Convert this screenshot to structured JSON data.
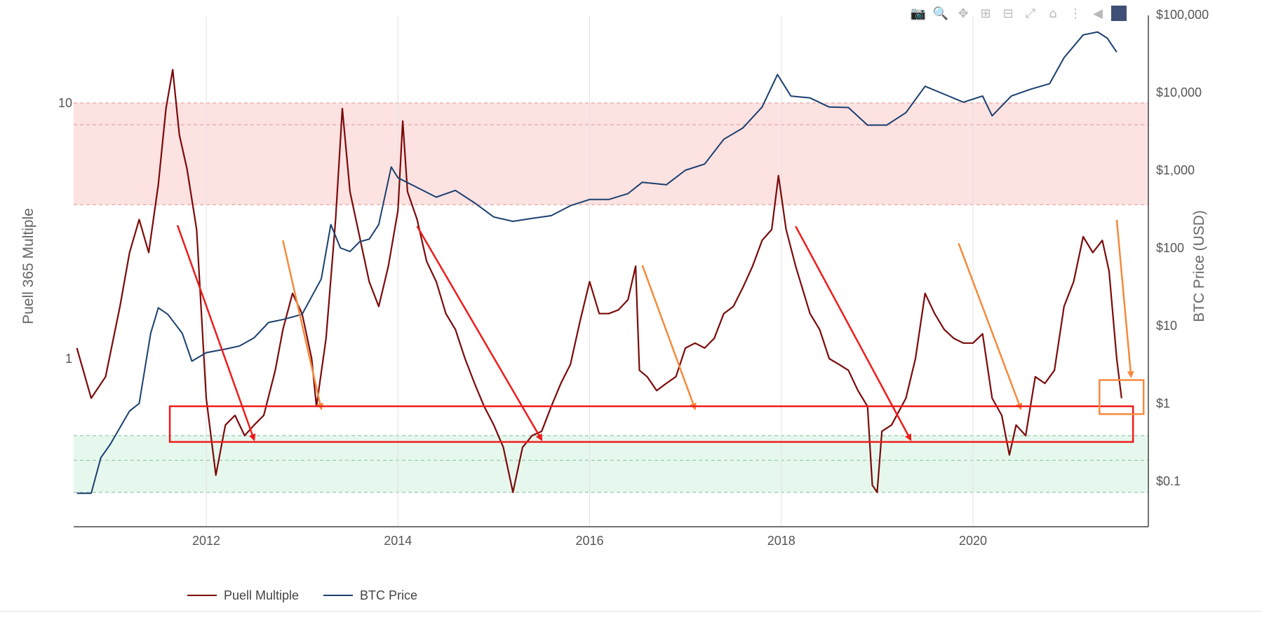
{
  "chart_data": {
    "type": "line",
    "x_tick_labels": [
      "2012",
      "2014",
      "2016",
      "2018",
      "2020"
    ],
    "y_left": {
      "label": "Puell 365 Multiple",
      "scale": "log",
      "tick_labels": [
        "10",
        "1"
      ]
    },
    "y_right": {
      "label": "BTC Price (USD)",
      "scale": "log",
      "tick_labels": [
        "$100,000",
        "$10,000",
        "$1,000",
        "$100",
        "$10",
        "$1",
        "$0.1"
      ]
    },
    "bands": [
      {
        "name": "high",
        "color": "#fde2e2",
        "puell_range": [
          4,
          10
        ]
      },
      {
        "name": "low",
        "color": "#e6f8ee",
        "puell_range": [
          0.3,
          0.5
        ]
      }
    ],
    "series": [
      {
        "name": "Puell Multiple",
        "color": "#7b0a0a",
        "points": [
          [
            2010.65,
            1.1
          ],
          [
            2010.8,
            0.7
          ],
          [
            2010.95,
            0.85
          ],
          [
            2011.1,
            1.6
          ],
          [
            2011.2,
            2.6
          ],
          [
            2011.3,
            3.5
          ],
          [
            2011.4,
            2.6
          ],
          [
            2011.5,
            4.8
          ],
          [
            2011.58,
            9.5
          ],
          [
            2011.65,
            13.5
          ],
          [
            2011.72,
            7.5
          ],
          [
            2011.8,
            5.5
          ],
          [
            2011.9,
            3.2
          ],
          [
            2012.0,
            0.7
          ],
          [
            2012.1,
            0.35
          ],
          [
            2012.2,
            0.55
          ],
          [
            2012.3,
            0.6
          ],
          [
            2012.4,
            0.5
          ],
          [
            2012.5,
            0.55
          ],
          [
            2012.6,
            0.6
          ],
          [
            2012.72,
            0.9
          ],
          [
            2012.8,
            1.3
          ],
          [
            2012.9,
            1.8
          ],
          [
            2013.0,
            1.5
          ],
          [
            2013.1,
            1.0
          ],
          [
            2013.15,
            0.65
          ],
          [
            2013.25,
            1.2
          ],
          [
            2013.35,
            3.5
          ],
          [
            2013.42,
            9.5
          ],
          [
            2013.5,
            4.5
          ],
          [
            2013.6,
            3.0
          ],
          [
            2013.7,
            2.0
          ],
          [
            2013.8,
            1.6
          ],
          [
            2013.9,
            2.3
          ],
          [
            2014.0,
            3.8
          ],
          [
            2014.05,
            8.5
          ],
          [
            2014.1,
            4.5
          ],
          [
            2014.2,
            3.5
          ],
          [
            2014.3,
            2.4
          ],
          [
            2014.4,
            2.0
          ],
          [
            2014.5,
            1.5
          ],
          [
            2014.6,
            1.3
          ],
          [
            2014.7,
            1.0
          ],
          [
            2014.8,
            0.8
          ],
          [
            2014.9,
            0.65
          ],
          [
            2015.0,
            0.55
          ],
          [
            2015.1,
            0.45
          ],
          [
            2015.2,
            0.3
          ],
          [
            2015.3,
            0.45
          ],
          [
            2015.4,
            0.5
          ],
          [
            2015.5,
            0.52
          ],
          [
            2015.6,
            0.65
          ],
          [
            2015.7,
            0.8
          ],
          [
            2015.8,
            0.95
          ],
          [
            2015.9,
            1.4
          ],
          [
            2016.0,
            2.0
          ],
          [
            2016.1,
            1.5
          ],
          [
            2016.2,
            1.5
          ],
          [
            2016.3,
            1.55
          ],
          [
            2016.4,
            1.7
          ],
          [
            2016.48,
            2.3
          ],
          [
            2016.52,
            0.9
          ],
          [
            2016.6,
            0.85
          ],
          [
            2016.7,
            0.75
          ],
          [
            2016.8,
            0.8
          ],
          [
            2016.9,
            0.85
          ],
          [
            2017.0,
            1.1
          ],
          [
            2017.1,
            1.15
          ],
          [
            2017.2,
            1.1
          ],
          [
            2017.3,
            1.2
          ],
          [
            2017.4,
            1.5
          ],
          [
            2017.5,
            1.6
          ],
          [
            2017.6,
            1.9
          ],
          [
            2017.7,
            2.3
          ],
          [
            2017.8,
            2.9
          ],
          [
            2017.9,
            3.2
          ],
          [
            2017.97,
            5.2
          ],
          [
            2018.05,
            3.2
          ],
          [
            2018.15,
            2.3
          ],
          [
            2018.3,
            1.5
          ],
          [
            2018.4,
            1.3
          ],
          [
            2018.5,
            1.0
          ],
          [
            2018.6,
            0.95
          ],
          [
            2018.7,
            0.9
          ],
          [
            2018.8,
            0.75
          ],
          [
            2018.9,
            0.65
          ],
          [
            2018.95,
            0.32
          ],
          [
            2019.0,
            0.3
          ],
          [
            2019.05,
            0.52
          ],
          [
            2019.15,
            0.55
          ],
          [
            2019.3,
            0.7
          ],
          [
            2019.4,
            1.0
          ],
          [
            2019.5,
            1.8
          ],
          [
            2019.6,
            1.5
          ],
          [
            2019.7,
            1.3
          ],
          [
            2019.8,
            1.2
          ],
          [
            2019.9,
            1.15
          ],
          [
            2020.0,
            1.15
          ],
          [
            2020.1,
            1.25
          ],
          [
            2020.2,
            0.7
          ],
          [
            2020.3,
            0.6
          ],
          [
            2020.38,
            0.42
          ],
          [
            2020.45,
            0.55
          ],
          [
            2020.55,
            0.5
          ],
          [
            2020.65,
            0.85
          ],
          [
            2020.75,
            0.8
          ],
          [
            2020.85,
            0.9
          ],
          [
            2020.95,
            1.6
          ],
          [
            2021.05,
            2.0
          ],
          [
            2021.15,
            3.0
          ],
          [
            2021.25,
            2.6
          ],
          [
            2021.35,
            2.9
          ],
          [
            2021.42,
            2.2
          ],
          [
            2021.5,
            1.0
          ],
          [
            2021.55,
            0.7
          ]
        ]
      },
      {
        "name": "BTC Price",
        "color": "#1a3f6e",
        "points": [
          [
            2010.65,
            0.07
          ],
          [
            2010.8,
            0.07
          ],
          [
            2010.9,
            0.2
          ],
          [
            2011.0,
            0.3
          ],
          [
            2011.2,
            0.8
          ],
          [
            2011.3,
            1.0
          ],
          [
            2011.42,
            8.0
          ],
          [
            2011.5,
            17.0
          ],
          [
            2011.6,
            14.0
          ],
          [
            2011.75,
            8.0
          ],
          [
            2011.85,
            3.5
          ],
          [
            2012.0,
            4.5
          ],
          [
            2012.2,
            5.0
          ],
          [
            2012.35,
            5.5
          ],
          [
            2012.5,
            7.0
          ],
          [
            2012.65,
            11.0
          ],
          [
            2012.8,
            12.0
          ],
          [
            2013.0,
            14.0
          ],
          [
            2013.2,
            40.0
          ],
          [
            2013.3,
            200.0
          ],
          [
            2013.4,
            100.0
          ],
          [
            2013.5,
            90.0
          ],
          [
            2013.6,
            120.0
          ],
          [
            2013.7,
            130.0
          ],
          [
            2013.8,
            200.0
          ],
          [
            2013.93,
            1100.0
          ],
          [
            2014.0,
            800.0
          ],
          [
            2014.2,
            600.0
          ],
          [
            2014.4,
            450.0
          ],
          [
            2014.6,
            550.0
          ],
          [
            2014.8,
            380.0
          ],
          [
            2015.0,
            250.0
          ],
          [
            2015.2,
            220.0
          ],
          [
            2015.4,
            240.0
          ],
          [
            2015.6,
            260.0
          ],
          [
            2015.8,
            350.0
          ],
          [
            2016.0,
            420.0
          ],
          [
            2016.2,
            420.0
          ],
          [
            2016.4,
            500.0
          ],
          [
            2016.55,
            700.0
          ],
          [
            2016.8,
            650.0
          ],
          [
            2017.0,
            1000.0
          ],
          [
            2017.2,
            1200.0
          ],
          [
            2017.4,
            2500.0
          ],
          [
            2017.6,
            3500.0
          ],
          [
            2017.8,
            6500.0
          ],
          [
            2017.96,
            17000.0
          ],
          [
            2018.1,
            9000.0
          ],
          [
            2018.3,
            8500.0
          ],
          [
            2018.5,
            6500.0
          ],
          [
            2018.7,
            6400.0
          ],
          [
            2018.9,
            3800.0
          ],
          [
            2019.1,
            3800.0
          ],
          [
            2019.3,
            5500.0
          ],
          [
            2019.5,
            12000.0
          ],
          [
            2019.7,
            9500.0
          ],
          [
            2019.9,
            7500.0
          ],
          [
            2020.1,
            9000.0
          ],
          [
            2020.2,
            5000.0
          ],
          [
            2020.4,
            9000.0
          ],
          [
            2020.6,
            11000.0
          ],
          [
            2020.8,
            13000.0
          ],
          [
            2020.95,
            28000.0
          ],
          [
            2021.15,
            55000.0
          ],
          [
            2021.3,
            60000.0
          ],
          [
            2021.4,
            50000.0
          ],
          [
            2021.5,
            33000.0
          ]
        ]
      }
    ],
    "legend": {
      "position": "bottom-left",
      "entries": [
        "Puell Multiple",
        "BTC Price"
      ]
    }
  },
  "toolbar": {
    "icons": [
      "camera-icon",
      "zoom-icon",
      "pan-icon",
      "zoom-in-icon",
      "zoom-out-icon",
      "autoscale-icon",
      "home-icon",
      "spike-lines-icon",
      "hover-closest-icon",
      "plotly-logo-icon"
    ]
  }
}
